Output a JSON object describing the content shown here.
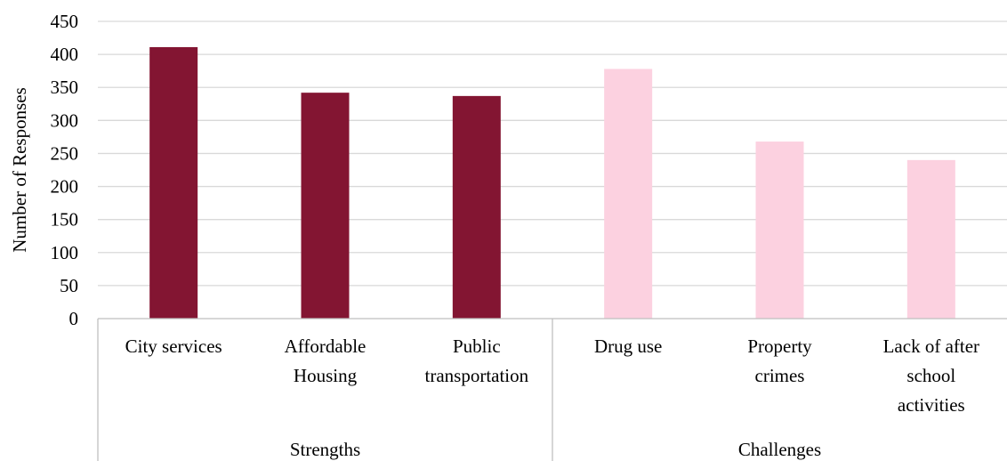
{
  "chart_data": {
    "type": "bar",
    "title": "",
    "xlabel": "",
    "ylabel": "Number of Responses",
    "ylim": [
      0,
      450
    ],
    "yticks": [
      0,
      50,
      100,
      150,
      200,
      250,
      300,
      350,
      400,
      450
    ],
    "grid": true,
    "legend": "none",
    "groups": [
      {
        "name": "Strengths",
        "color": "#831532",
        "categories": [
          "City services",
          "Affordable Housing",
          "Public transportation"
        ],
        "values": [
          411,
          342,
          337
        ]
      },
      {
        "name": "Challenges",
        "color": "#fcd1e0",
        "categories": [
          "Drug use",
          "Property crimes",
          "Lack of after school activities"
        ],
        "values": [
          378,
          268,
          240
        ]
      }
    ],
    "category_label_lines": [
      [
        "City services"
      ],
      [
        "Affordable",
        "Housing"
      ],
      [
        "Public",
        "transportation"
      ],
      [
        "Drug use"
      ],
      [
        "Property",
        "crimes"
      ],
      [
        "Lack of after",
        "school",
        "activities"
      ]
    ]
  }
}
